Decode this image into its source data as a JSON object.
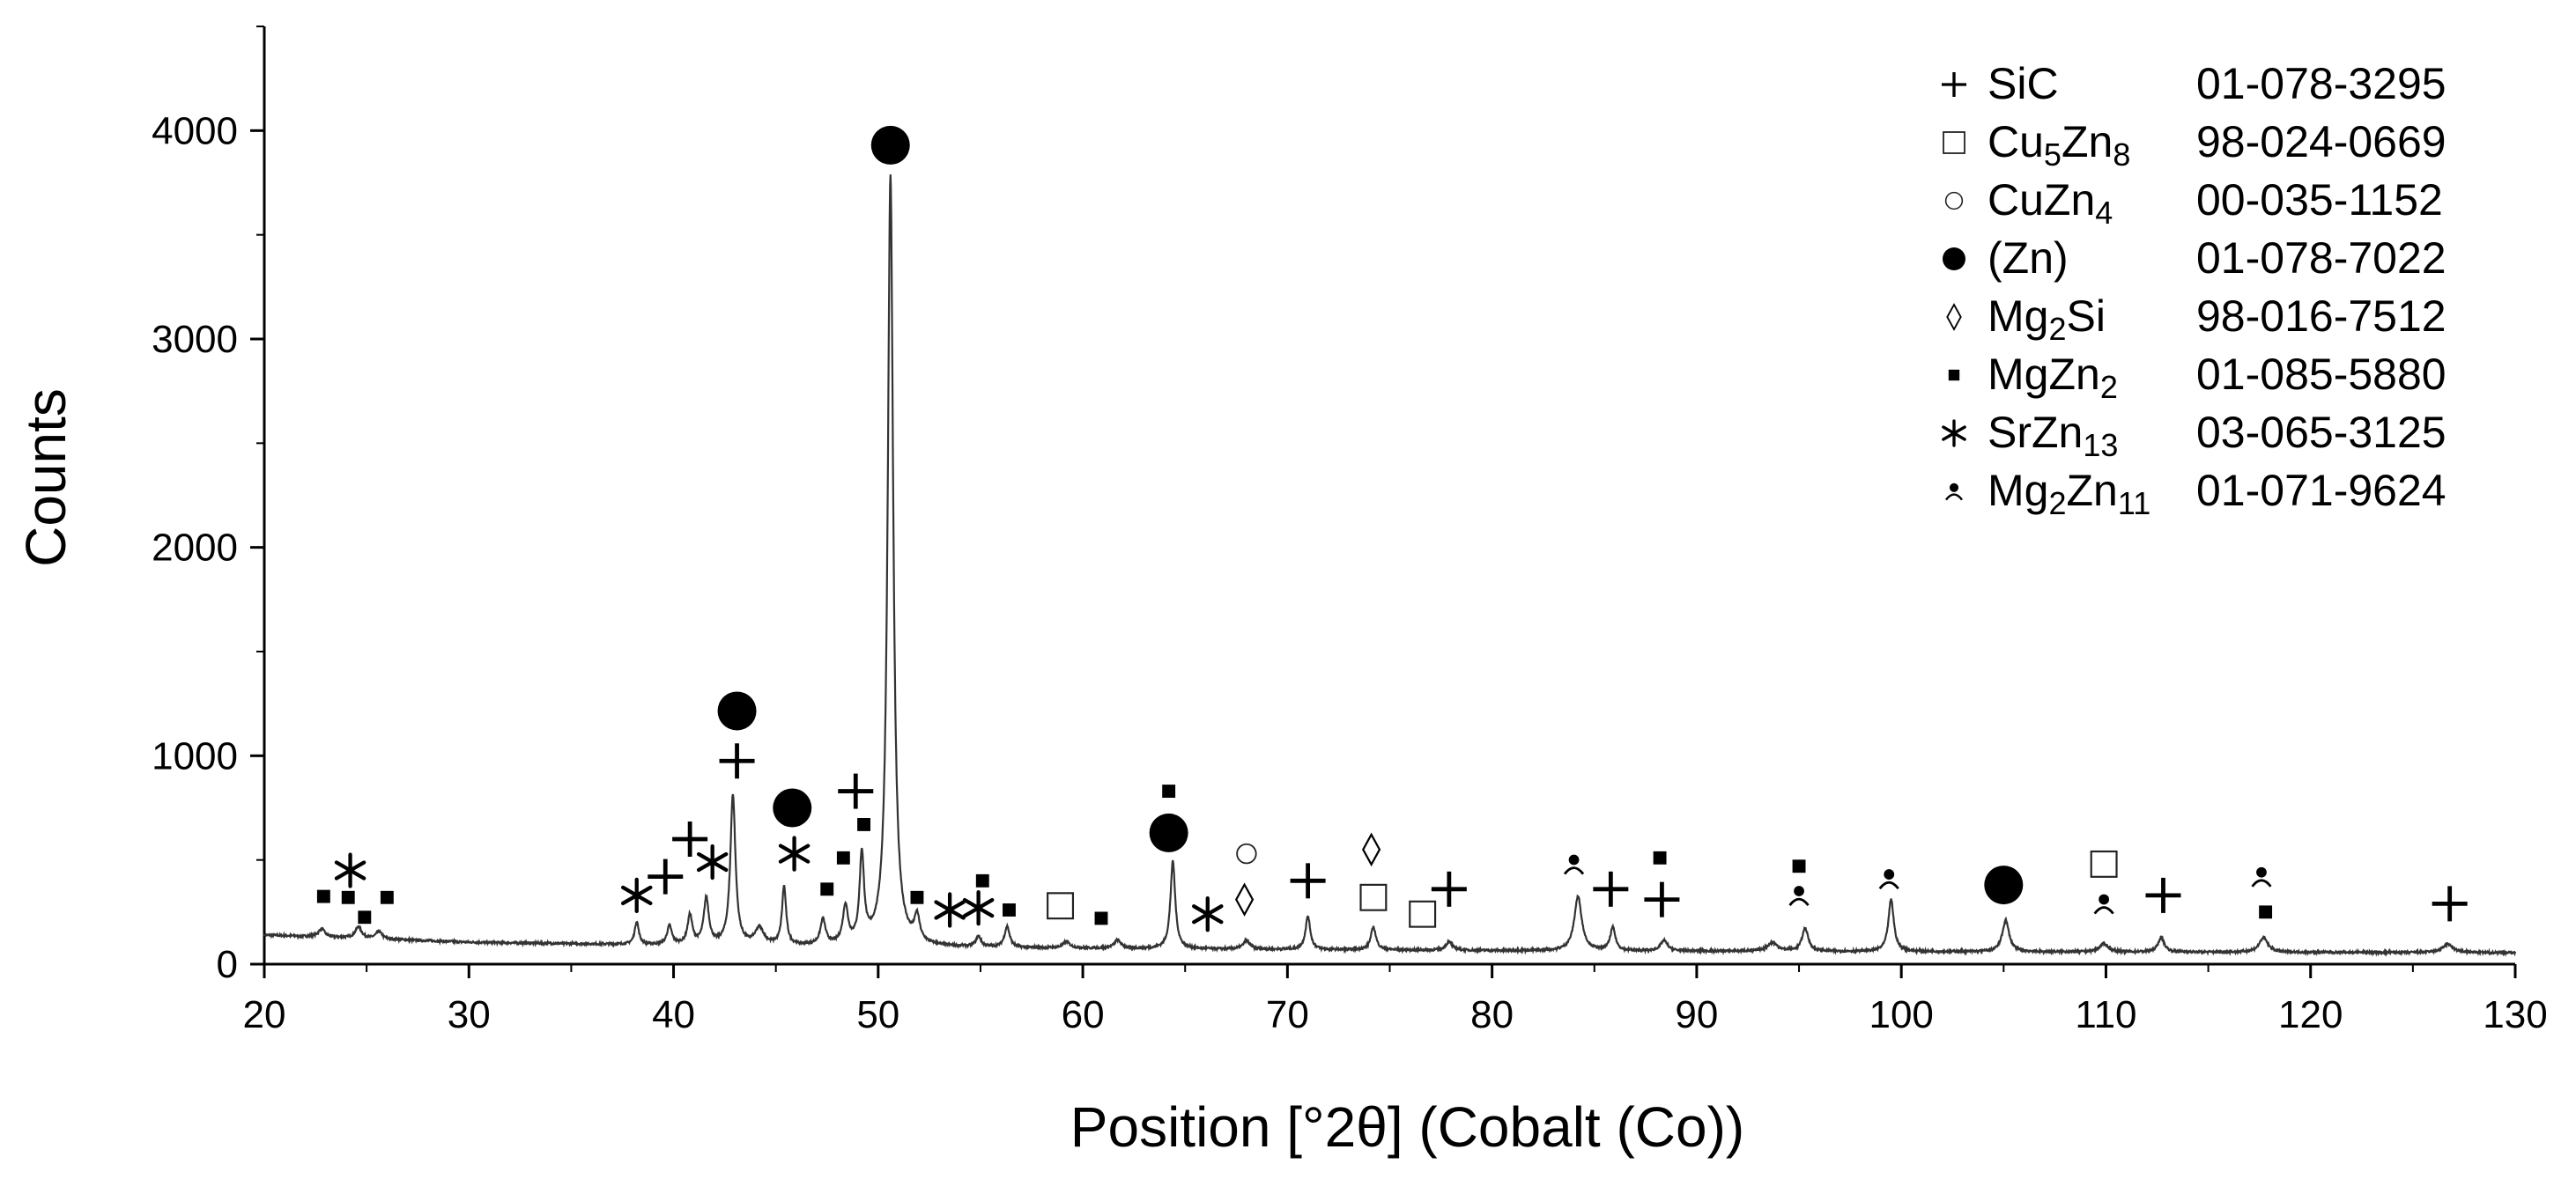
{
  "chart_data": {
    "type": "line",
    "xlabel": "Position [°2θ] (Cobalt (Co))",
    "ylabel": "Counts",
    "xlim": [
      20,
      130
    ],
    "ylim": [
      0,
      4500
    ],
    "x_ticks": [
      "20",
      "30",
      "40",
      "50",
      "60",
      "70",
      "80",
      "90",
      "100",
      "110",
      "120",
      "130"
    ],
    "y_ticks": [
      "0",
      "1000",
      "2000",
      "3000",
      "4000"
    ],
    "grid": false,
    "legend_position": "top-right",
    "series": [
      {
        "baseline": [
          [
            20,
            140
          ],
          [
            30,
            105
          ],
          [
            40,
            90
          ],
          [
            60,
            75
          ],
          [
            80,
            65
          ],
          [
            100,
            60
          ],
          [
            130,
            55
          ]
        ],
        "peaks": [
          {
            "x": 22.8,
            "y": 40,
            "w": 0.18
          },
          {
            "x": 24.6,
            "y": 55,
            "w": 0.18
          },
          {
            "x": 25.6,
            "y": 35,
            "w": 0.18
          },
          {
            "x": 38.2,
            "y": 110,
            "w": 0.12
          },
          {
            "x": 39.8,
            "y": 90,
            "w": 0.14
          },
          {
            "x": 40.8,
            "y": 140,
            "w": 0.14
          },
          {
            "x": 41.6,
            "y": 220,
            "w": 0.15
          },
          {
            "x": 42.9,
            "y": 720,
            "w": 0.15
          },
          {
            "x": 44.2,
            "y": 80,
            "w": 0.25
          },
          {
            "x": 45.4,
            "y": 280,
            "w": 0.12
          },
          {
            "x": 47.3,
            "y": 120,
            "w": 0.15
          },
          {
            "x": 48.4,
            "y": 180,
            "w": 0.15
          },
          {
            "x": 49.2,
            "y": 420,
            "w": 0.13
          },
          {
            "x": 50.6,
            "y": 3700,
            "w": 0.16
          },
          {
            "x": 51.9,
            "y": 120,
            "w": 0.15
          },
          {
            "x": 54.9,
            "y": 50,
            "w": 0.15
          },
          {
            "x": 56.3,
            "y": 100,
            "w": 0.15
          },
          {
            "x": 59.2,
            "y": 30,
            "w": 0.2
          },
          {
            "x": 61.7,
            "y": 40,
            "w": 0.2
          },
          {
            "x": 64.4,
            "y": 420,
            "w": 0.14
          },
          {
            "x": 68.0,
            "y": 40,
            "w": 0.2
          },
          {
            "x": 71.0,
            "y": 160,
            "w": 0.14
          },
          {
            "x": 74.2,
            "y": 110,
            "w": 0.15
          },
          {
            "x": 77.9,
            "y": 40,
            "w": 0.2
          },
          {
            "x": 84.2,
            "y": 260,
            "w": 0.22
          },
          {
            "x": 85.9,
            "y": 110,
            "w": 0.15
          },
          {
            "x": 88.4,
            "y": 50,
            "w": 0.2
          },
          {
            "x": 93.7,
            "y": 40,
            "w": 0.3
          },
          {
            "x": 95.3,
            "y": 110,
            "w": 0.18
          },
          {
            "x": 99.5,
            "y": 250,
            "w": 0.16
          },
          {
            "x": 105.1,
            "y": 150,
            "w": 0.2
          },
          {
            "x": 109.9,
            "y": 40,
            "w": 0.25
          },
          {
            "x": 112.7,
            "y": 70,
            "w": 0.18
          },
          {
            "x": 117.7,
            "y": 70,
            "w": 0.25
          },
          {
            "x": 126.7,
            "y": 40,
            "w": 0.3
          }
        ]
      }
    ],
    "legend": [
      {
        "marker": "plus",
        "label_parts": [
          [
            "SiC",
            ""
          ]
        ],
        "code": "01-078-3295"
      },
      {
        "marker": "open-square",
        "label_parts": [
          [
            "Cu",
            ""
          ],
          [
            "5",
            "sub"
          ],
          [
            "Zn",
            ""
          ],
          [
            "8",
            "sub"
          ]
        ],
        "code": "98-024-0669"
      },
      {
        "marker": "open-circle",
        "label_parts": [
          [
            "CuZn",
            ""
          ],
          [
            "4",
            "sub"
          ]
        ],
        "code": "00-035-1152"
      },
      {
        "marker": "filled-circle",
        "label_parts": [
          [
            "(Zn)",
            ""
          ]
        ],
        "code": "01-078-7022"
      },
      {
        "marker": "diamond",
        "label_parts": [
          [
            "Mg",
            ""
          ],
          [
            "2",
            "sub"
          ],
          [
            "Si",
            ""
          ]
        ],
        "code": "98-016-7512"
      },
      {
        "marker": "filled-square",
        "label_parts": [
          [
            "MgZn",
            ""
          ],
          [
            "2",
            "sub"
          ]
        ],
        "code": "01-085-5880"
      },
      {
        "marker": "asterisk",
        "label_parts": [
          [
            "SrZn",
            ""
          ],
          [
            "13",
            "sub"
          ]
        ],
        "code": "03-065-3125"
      },
      {
        "marker": "person",
        "label_parts": [
          [
            "Mg",
            ""
          ],
          [
            "2",
            "sub"
          ],
          [
            "Zn",
            ""
          ],
          [
            "11",
            "sub"
          ]
        ],
        "code": "01-071-9624"
      }
    ],
    "phase_markers": [
      {
        "marker": "filled-square",
        "x": 22.9,
        "y": 325
      },
      {
        "marker": "asterisk",
        "x": 24.2,
        "y": 450
      },
      {
        "marker": "filled-square",
        "x": 24.1,
        "y": 320
      },
      {
        "marker": "filled-square",
        "x": 24.9,
        "y": 225
      },
      {
        "marker": "filled-square",
        "x": 26.0,
        "y": 320
      },
      {
        "marker": "asterisk",
        "x": 38.2,
        "y": 330
      },
      {
        "marker": "plus",
        "x": 39.6,
        "y": 420
      },
      {
        "marker": "plus",
        "x": 40.8,
        "y": 600
      },
      {
        "marker": "asterisk",
        "x": 41.9,
        "y": 490
      },
      {
        "marker": "filled-circle",
        "x": 43.1,
        "y": 1215
      },
      {
        "marker": "plus",
        "x": 43.1,
        "y": 975
      },
      {
        "marker": "filled-circle",
        "x": 45.8,
        "y": 750
      },
      {
        "marker": "asterisk",
        "x": 45.9,
        "y": 530
      },
      {
        "marker": "filled-square",
        "x": 47.5,
        "y": 360
      },
      {
        "marker": "filled-square",
        "x": 48.3,
        "y": 510
      },
      {
        "marker": "plus",
        "x": 48.9,
        "y": 830
      },
      {
        "marker": "filled-square",
        "x": 49.3,
        "y": 670
      },
      {
        "marker": "filled-circle",
        "x": 50.6,
        "y": 3930
      },
      {
        "marker": "filled-square",
        "x": 51.9,
        "y": 320
      },
      {
        "marker": "asterisk",
        "x": 53.5,
        "y": 260
      },
      {
        "marker": "asterisk",
        "x": 54.9,
        "y": 270
      },
      {
        "marker": "filled-square",
        "x": 55.1,
        "y": 400
      },
      {
        "marker": "filled-square",
        "x": 56.4,
        "y": 260
      },
      {
        "marker": "open-square",
        "x": 58.9,
        "y": 280
      },
      {
        "marker": "filled-square",
        "x": 60.9,
        "y": 220
      },
      {
        "marker": "filled-square",
        "x": 64.2,
        "y": 830
      },
      {
        "marker": "filled-circle",
        "x": 64.2,
        "y": 630
      },
      {
        "marker": "asterisk",
        "x": 66.1,
        "y": 240
      },
      {
        "marker": "open-circle",
        "x": 68.0,
        "y": 530
      },
      {
        "marker": "diamond",
        "x": 67.9,
        "y": 310
      },
      {
        "marker": "plus",
        "x": 71.0,
        "y": 400
      },
      {
        "marker": "diamond",
        "x": 74.1,
        "y": 550
      },
      {
        "marker": "open-square",
        "x": 74.2,
        "y": 320
      },
      {
        "marker": "open-square",
        "x": 76.6,
        "y": 240
      },
      {
        "marker": "plus",
        "x": 77.9,
        "y": 360
      },
      {
        "marker": "person",
        "x": 84.0,
        "y": 480
      },
      {
        "marker": "plus",
        "x": 85.8,
        "y": 360
      },
      {
        "marker": "filled-square",
        "x": 88.2,
        "y": 510
      },
      {
        "marker": "plus",
        "x": 88.3,
        "y": 310
      },
      {
        "marker": "filled-square",
        "x": 95.0,
        "y": 470
      },
      {
        "marker": "person",
        "x": 95.0,
        "y": 330
      },
      {
        "marker": "person",
        "x": 99.4,
        "y": 410
      },
      {
        "marker": "filled-circle",
        "x": 105.0,
        "y": 380
      },
      {
        "marker": "open-square",
        "x": 109.9,
        "y": 480
      },
      {
        "marker": "person",
        "x": 109.9,
        "y": 290
      },
      {
        "marker": "plus",
        "x": 112.8,
        "y": 330
      },
      {
        "marker": "person",
        "x": 117.6,
        "y": 420
      },
      {
        "marker": "filled-square",
        "x": 117.8,
        "y": 250
      },
      {
        "marker": "plus",
        "x": 126.8,
        "y": 290
      }
    ]
  }
}
